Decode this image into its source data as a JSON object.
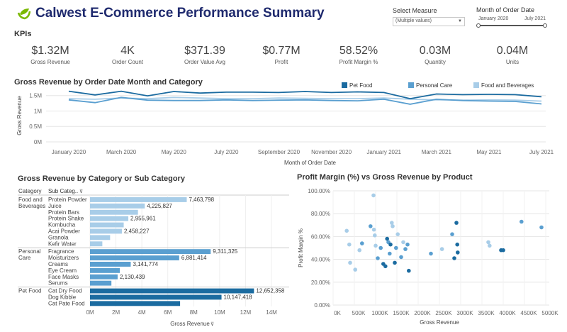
{
  "header": {
    "title": "Calwest E-Commerce Performance Summary",
    "logo_icon": "leaf-icon",
    "brand_color": "#1f2a6e",
    "logo_color": "#7ab800"
  },
  "filters": {
    "measure": {
      "label": "Select Measure",
      "value": "(Multiple values)"
    },
    "month": {
      "label": "Month of Order Date",
      "start": "January 2020",
      "end": "July 2021"
    }
  },
  "kpis": {
    "heading": "KPIs",
    "items": [
      {
        "value": "$1.32M",
        "label": "Gross Revenue"
      },
      {
        "value": "4K",
        "label": "Order Count"
      },
      {
        "value": "$371.39",
        "label": "Order Value Avg"
      },
      {
        "value": "$0.77M",
        "label": "Profit"
      },
      {
        "value": "58.52%",
        "label": "Profit Margin %"
      },
      {
        "value": "0.03M",
        "label": "Quantity"
      },
      {
        "value": "0.04M",
        "label": "Units"
      }
    ]
  },
  "colors": {
    "pet_food": "#1b6ba0",
    "personal_care": "#5a9fd0",
    "food_and_beverages": "#a8cde8",
    "grid": "#e5e5e5"
  },
  "line_chart": {
    "title": "Gross Revenue by Order Date Month and Category",
    "chart_data": {
      "type": "line",
      "title": "Gross Revenue by Order Date Month and Category",
      "xlabel": "Month of Order Date",
      "ylabel": "Gross Revenue",
      "x_tick_labels": [
        "January 2020",
        "March 2020",
        "May 2020",
        "July 2020",
        "September 2020",
        "November 2020",
        "January 2021",
        "March 2021",
        "May 2021",
        "July 2021"
      ],
      "y_tick_labels": [
        "0M",
        "0.5M",
        "1M",
        "1.5M"
      ],
      "ylim": [
        0,
        1.7
      ],
      "x": [
        "Jan 2020",
        "Feb 2020",
        "Mar 2020",
        "Apr 2020",
        "May 2020",
        "Jun 2020",
        "Jul 2020",
        "Aug 2020",
        "Sep 2020",
        "Oct 2020",
        "Nov 2020",
        "Dec 2020",
        "Jan 2021",
        "Feb 2021",
        "Mar 2021",
        "Apr 2021",
        "May 2021",
        "Jun 2021",
        "Jul 2021"
      ],
      "series": [
        {
          "name": "Pet Food",
          "color": "#1b6ba0",
          "values": [
            1.64,
            1.52,
            1.64,
            1.49,
            1.63,
            1.58,
            1.61,
            1.61,
            1.6,
            1.63,
            1.6,
            1.62,
            1.6,
            1.4,
            1.55,
            1.53,
            1.54,
            1.53,
            1.46
          ]
        },
        {
          "name": "Personal Care",
          "color": "#5a9fd0",
          "values": [
            1.36,
            1.27,
            1.44,
            1.35,
            1.34,
            1.34,
            1.36,
            1.34,
            1.35,
            1.36,
            1.34,
            1.33,
            1.38,
            1.22,
            1.38,
            1.34,
            1.32,
            1.31,
            1.23
          ]
        },
        {
          "name": "Food and Beverages",
          "color": "#a8cde8",
          "values": [
            1.4,
            1.38,
            1.42,
            1.4,
            1.44,
            1.42,
            1.4,
            1.4,
            1.42,
            1.41,
            1.4,
            1.4,
            1.42,
            1.38,
            1.36,
            1.35,
            1.36,
            1.35,
            1.32
          ]
        }
      ],
      "legend": "top-right",
      "grid": true
    }
  },
  "bar_chart": {
    "title": "Gross Revenue by Category or Sub Category",
    "col_category": "Category",
    "col_sub": "Sub Categ..",
    "chart_data": {
      "type": "bar",
      "orientation": "horizontal",
      "title": "Gross Revenue by Category or Sub Category",
      "xlabel": "Gross Revenue",
      "xlim": [
        0,
        14000000
      ],
      "x_tick_labels": [
        "0M",
        "2M",
        "4M",
        "6M",
        "8M",
        "10M",
        "12M",
        "14M"
      ],
      "groups": [
        {
          "category": "Food and Beverages",
          "label_lines": [
            "Food and",
            "Beverages"
          ],
          "color": "#a8cde8",
          "items": [
            {
              "name": "Protein Powder",
              "value": 7463798,
              "label": "7,463,798"
            },
            {
              "name": "Juice",
              "value": 4225827,
              "label": "4,225,827"
            },
            {
              "name": "Protein Bars",
              "value": 3700000,
              "label": ""
            },
            {
              "name": "Protein Shake",
              "value": 2955961,
              "label": "2,955,961"
            },
            {
              "name": "Kombucha",
              "value": 2600000,
              "label": ""
            },
            {
              "name": "Acai Powder",
              "value": 2458227,
              "label": "2,458,227"
            },
            {
              "name": "Granola",
              "value": 1550000,
              "label": ""
            },
            {
              "name": "Kefir Water",
              "value": 950000,
              "label": ""
            }
          ]
        },
        {
          "category": "Personal Care",
          "label_lines": [
            "Personal",
            "Care"
          ],
          "color": "#5a9fd0",
          "items": [
            {
              "name": "Fragrance",
              "value": 9311325,
              "label": "9,311,325"
            },
            {
              "name": "Moisturizers",
              "value": 6881414,
              "label": "6,881,414"
            },
            {
              "name": "Creams",
              "value": 3141774,
              "label": "3,141,774"
            },
            {
              "name": "Eye Cream",
              "value": 2300000,
              "label": ""
            },
            {
              "name": "Face Masks",
              "value": 2130439,
              "label": "2,130,439"
            },
            {
              "name": "Serums",
              "value": 1650000,
              "label": ""
            }
          ]
        },
        {
          "category": "Pet Food",
          "label_lines": [
            "Pet Food"
          ],
          "color": "#1b6ba0",
          "items": [
            {
              "name": "Cat Dry Food",
              "value": 12652358,
              "label": "12,652,358"
            },
            {
              "name": "Dog Kibble",
              "value": 10147418,
              "label": "10,147,418"
            },
            {
              "name": "Cat Pate Food",
              "value": 6950000,
              "label": ""
            }
          ]
        }
      ]
    }
  },
  "scatter_chart": {
    "title": "Profit Margin (%) vs Gross Revenue by Product",
    "chart_data": {
      "type": "scatter",
      "title": "Profit Margin (%) vs Gross Revenue by Product",
      "xlabel": "Gross Revenue",
      "ylabel": "Profit Margin %",
      "xlim": [
        0,
        5000000
      ],
      "ylim": [
        0,
        100
      ],
      "x_tick_labels": [
        "0K",
        "500K",
        "1000K",
        "1500K",
        "2000K",
        "2500K",
        "3000K",
        "3500K",
        "4000K",
        "4500K",
        "5000K"
      ],
      "y_tick_labels": [
        "0.00%",
        "20.00%",
        "40.00%",
        "60.00%",
        "80.00%",
        "100.00%"
      ],
      "points": [
        {
          "x": 950000,
          "y": 96,
          "category": "Food and Beverages"
        },
        {
          "x": 320000,
          "y": 65,
          "category": "Food and Beverages"
        },
        {
          "x": 380000,
          "y": 53,
          "category": "Food and Beverages"
        },
        {
          "x": 400000,
          "y": 37,
          "category": "Food and Beverages"
        },
        {
          "x": 520000,
          "y": 31,
          "category": "Food and Beverages"
        },
        {
          "x": 680000,
          "y": 54,
          "category": "Personal Care"
        },
        {
          "x": 620000,
          "y": 48,
          "category": "Food and Beverages"
        },
        {
          "x": 880000,
          "y": 69,
          "category": "Personal Care"
        },
        {
          "x": 960000,
          "y": 66,
          "category": "Food and Beverages"
        },
        {
          "x": 980000,
          "y": 61,
          "category": "Food and Beverages"
        },
        {
          "x": 1000000,
          "y": 52,
          "category": "Food and Beverages"
        },
        {
          "x": 1050000,
          "y": 41,
          "category": "Personal Care"
        },
        {
          "x": 1120000,
          "y": 50,
          "category": "Personal Care"
        },
        {
          "x": 1180000,
          "y": 36,
          "category": "Pet Food"
        },
        {
          "x": 1230000,
          "y": 34,
          "category": "Pet Food"
        },
        {
          "x": 1270000,
          "y": 58,
          "category": "Pet Food"
        },
        {
          "x": 1300000,
          "y": 55,
          "category": "Personal Care"
        },
        {
          "x": 1330000,
          "y": 45,
          "category": "Personal Care"
        },
        {
          "x": 1380000,
          "y": 72,
          "category": "Food and Beverages"
        },
        {
          "x": 1400000,
          "y": 69,
          "category": "Food and Beverages"
        },
        {
          "x": 1450000,
          "y": 37,
          "category": "Pet Food"
        },
        {
          "x": 1480000,
          "y": 50,
          "category": "Personal Care"
        },
        {
          "x": 1520000,
          "y": 62,
          "category": "Food and Beverages"
        },
        {
          "x": 1600000,
          "y": 42,
          "category": "Personal Care"
        },
        {
          "x": 1650000,
          "y": 55,
          "category": "Food and Beverages"
        },
        {
          "x": 1700000,
          "y": 49,
          "category": "Personal Care"
        },
        {
          "x": 1750000,
          "y": 53,
          "category": "Personal Care"
        },
        {
          "x": 1780000,
          "y": 30,
          "category": "Pet Food"
        },
        {
          "x": 1350000,
          "y": 53,
          "category": "Pet Food"
        },
        {
          "x": 2300000,
          "y": 45,
          "category": "Personal Care"
        },
        {
          "x": 2560000,
          "y": 49,
          "category": "Food and Beverages"
        },
        {
          "x": 2800000,
          "y": 62,
          "category": "Personal Care"
        },
        {
          "x": 2900000,
          "y": 72,
          "category": "Pet Food"
        },
        {
          "x": 2920000,
          "y": 53,
          "category": "Pet Food"
        },
        {
          "x": 2930000,
          "y": 46,
          "category": "Pet Food"
        },
        {
          "x": 2850000,
          "y": 41,
          "category": "Pet Food"
        },
        {
          "x": 3650000,
          "y": 55,
          "category": "Food and Beverages"
        },
        {
          "x": 3680000,
          "y": 52,
          "category": "Food and Beverages"
        },
        {
          "x": 3950000,
          "y": 48,
          "category": "Pet Food"
        },
        {
          "x": 4000000,
          "y": 48,
          "category": "Pet Food"
        },
        {
          "x": 4430000,
          "y": 73,
          "category": "Personal Care"
        },
        {
          "x": 4900000,
          "y": 68,
          "category": "Personal Care"
        }
      ],
      "grid": true
    }
  }
}
